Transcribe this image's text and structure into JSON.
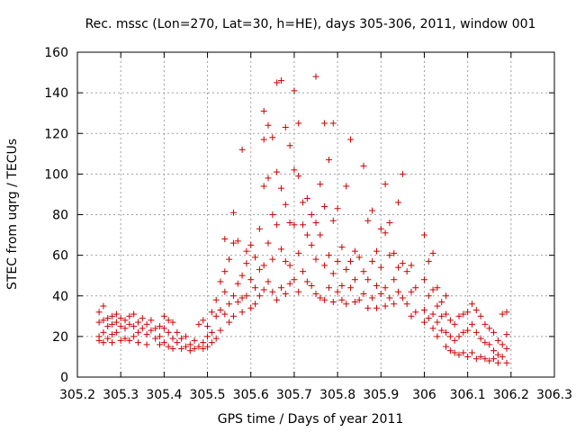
{
  "chart_data": {
    "type": "scatter",
    "title": "Rec. mssc (Lon=270, Lat=30, h=HE), days 305-306, 2011, window 001",
    "xlabel": "GPS time / Days of year 2011",
    "ylabel": "STEC from uqrg / TECUs",
    "xlim": [
      305.2,
      306.3
    ],
    "ylim": [
      0,
      160
    ],
    "xticks": [
      "305.2",
      "305.3",
      "305.4",
      "305.5",
      "305.6",
      "305.7",
      "305.8",
      "305.9",
      "306",
      "306.1",
      "306.2",
      "306.3"
    ],
    "yticks": [
      "0",
      "20",
      "40",
      "60",
      "80",
      "100",
      "120",
      "140",
      "160"
    ],
    "grid": true,
    "marker": "plus",
    "color": "#cc0000",
    "series": [
      {
        "name": "",
        "points": [
          [
            305.25,
            32
          ],
          [
            305.25,
            27
          ],
          [
            305.25,
            20
          ],
          [
            305.25,
            18
          ],
          [
            305.26,
            35
          ],
          [
            305.26,
            28
          ],
          [
            305.26,
            22
          ],
          [
            305.26,
            17
          ],
          [
            305.27,
            29
          ],
          [
            305.27,
            25
          ],
          [
            305.27,
            19
          ],
          [
            305.28,
            30
          ],
          [
            305.28,
            26
          ],
          [
            305.28,
            21
          ],
          [
            305.28,
            17
          ],
          [
            305.29,
            31
          ],
          [
            305.29,
            27
          ],
          [
            305.29,
            22
          ],
          [
            305.3,
            29
          ],
          [
            305.3,
            25
          ],
          [
            305.3,
            18
          ],
          [
            305.31,
            28
          ],
          [
            305.31,
            24
          ],
          [
            305.31,
            19
          ],
          [
            305.32,
            30
          ],
          [
            305.32,
            26
          ],
          [
            305.32,
            18
          ],
          [
            305.33,
            31
          ],
          [
            305.33,
            25
          ],
          [
            305.33,
            20
          ],
          [
            305.34,
            27
          ],
          [
            305.34,
            22
          ],
          [
            305.34,
            17
          ],
          [
            305.35,
            29
          ],
          [
            305.35,
            24
          ],
          [
            305.36,
            26
          ],
          [
            305.36,
            21
          ],
          [
            305.36,
            16
          ],
          [
            305.37,
            28
          ],
          [
            305.37,
            23
          ],
          [
            305.38,
            24
          ],
          [
            305.38,
            19
          ],
          [
            305.39,
            25
          ],
          [
            305.39,
            20
          ],
          [
            305.39,
            16
          ],
          [
            305.4,
            30
          ],
          [
            305.4,
            24
          ],
          [
            305.4,
            17
          ],
          [
            305.41,
            28
          ],
          [
            305.41,
            22
          ],
          [
            305.41,
            15
          ],
          [
            305.42,
            27
          ],
          [
            305.42,
            19
          ],
          [
            305.42,
            14
          ],
          [
            305.43,
            22
          ],
          [
            305.43,
            17
          ],
          [
            305.44,
            19
          ],
          [
            305.44,
            14
          ],
          [
            305.45,
            20
          ],
          [
            305.45,
            15
          ],
          [
            305.46,
            16
          ],
          [
            305.46,
            13
          ],
          [
            305.47,
            18
          ],
          [
            305.47,
            14
          ],
          [
            305.48,
            26
          ],
          [
            305.48,
            15
          ],
          [
            305.49,
            28
          ],
          [
            305.49,
            17
          ],
          [
            305.49,
            14
          ],
          [
            305.5,
            25
          ],
          [
            305.5,
            20
          ],
          [
            305.5,
            15
          ],
          [
            305.51,
            32
          ],
          [
            305.51,
            22
          ],
          [
            305.51,
            17
          ],
          [
            305.52,
            38
          ],
          [
            305.52,
            30
          ],
          [
            305.52,
            19
          ],
          [
            305.53,
            47
          ],
          [
            305.53,
            33
          ],
          [
            305.53,
            23
          ],
          [
            305.54,
            52
          ],
          [
            305.54,
            42
          ],
          [
            305.54,
            31
          ],
          [
            305.54,
            68
          ],
          [
            305.55,
            58
          ],
          [
            305.55,
            36
          ],
          [
            305.55,
            27
          ],
          [
            305.56,
            81
          ],
          [
            305.56,
            66
          ],
          [
            305.56,
            40
          ],
          [
            305.56,
            30
          ],
          [
            305.57,
            67
          ],
          [
            305.57,
            46
          ],
          [
            305.57,
            37
          ],
          [
            305.58,
            112
          ],
          [
            305.58,
            50
          ],
          [
            305.58,
            39
          ],
          [
            305.58,
            32
          ],
          [
            305.59,
            62
          ],
          [
            305.59,
            56
          ],
          [
            305.59,
            40
          ],
          [
            305.6,
            65
          ],
          [
            305.6,
            48
          ],
          [
            305.6,
            34
          ],
          [
            305.61,
            59
          ],
          [
            305.61,
            44
          ],
          [
            305.61,
            36
          ],
          [
            305.62,
            73
          ],
          [
            305.62,
            53
          ],
          [
            305.62,
            40
          ],
          [
            305.63,
            94
          ],
          [
            305.63,
            131
          ],
          [
            305.63,
            117
          ],
          [
            305.63,
            55
          ],
          [
            305.63,
            43
          ],
          [
            305.64,
            124
          ],
          [
            305.64,
            98
          ],
          [
            305.64,
            66
          ],
          [
            305.64,
            47
          ],
          [
            305.65,
            118
          ],
          [
            305.65,
            80
          ],
          [
            305.65,
            58
          ],
          [
            305.65,
            42
          ],
          [
            305.66,
            145
          ],
          [
            305.66,
            101
          ],
          [
            305.66,
            75
          ],
          [
            305.66,
            38
          ],
          [
            305.67,
            146
          ],
          [
            305.67,
            93
          ],
          [
            305.67,
            63
          ],
          [
            305.67,
            44
          ],
          [
            305.68,
            123
          ],
          [
            305.68,
            85
          ],
          [
            305.68,
            57
          ],
          [
            305.68,
            41
          ],
          [
            305.69,
            114
          ],
          [
            305.69,
            76
          ],
          [
            305.69,
            55
          ],
          [
            305.69,
            46
          ],
          [
            305.7,
            141
          ],
          [
            305.7,
            102
          ],
          [
            305.7,
            75
          ],
          [
            305.7,
            48
          ],
          [
            305.71,
            125
          ],
          [
            305.71,
            99
          ],
          [
            305.71,
            61
          ],
          [
            305.71,
            42
          ],
          [
            305.72,
            86
          ],
          [
            305.72,
            75
          ],
          [
            305.72,
            52
          ],
          [
            305.73,
            88
          ],
          [
            305.73,
            70
          ],
          [
            305.73,
            47
          ],
          [
            305.74,
            80
          ],
          [
            305.74,
            65
          ],
          [
            305.74,
            45
          ],
          [
            305.75,
            148
          ],
          [
            305.75,
            76
          ],
          [
            305.75,
            58
          ],
          [
            305.75,
            41
          ],
          [
            305.76,
            95
          ],
          [
            305.76,
            70
          ],
          [
            305.76,
            39
          ],
          [
            305.77,
            125
          ],
          [
            305.77,
            84
          ],
          [
            305.77,
            55
          ],
          [
            305.77,
            38
          ],
          [
            305.78,
            107
          ],
          [
            305.78,
            60
          ],
          [
            305.78,
            44
          ],
          [
            305.79,
            125
          ],
          [
            305.79,
            77
          ],
          [
            305.79,
            51
          ],
          [
            305.79,
            37
          ],
          [
            305.8,
            83
          ],
          [
            305.8,
            57
          ],
          [
            305.8,
            42
          ],
          [
            305.81,
            64
          ],
          [
            305.81,
            45
          ],
          [
            305.81,
            38
          ],
          [
            305.82,
            94
          ],
          [
            305.82,
            53
          ],
          [
            305.82,
            36
          ],
          [
            305.83,
            117
          ],
          [
            305.83,
            57
          ],
          [
            305.83,
            44
          ],
          [
            305.84,
            62
          ],
          [
            305.84,
            48
          ],
          [
            305.84,
            37
          ],
          [
            305.85,
            59
          ],
          [
            305.85,
            38
          ],
          [
            305.86,
            104
          ],
          [
            305.86,
            52
          ],
          [
            305.86,
            41
          ],
          [
            305.87,
            77
          ],
          [
            305.87,
            48
          ],
          [
            305.87,
            34
          ],
          [
            305.88,
            82
          ],
          [
            305.88,
            57
          ],
          [
            305.88,
            39
          ],
          [
            305.89,
            62
          ],
          [
            305.89,
            45
          ],
          [
            305.89,
            34
          ],
          [
            305.9,
            73
          ],
          [
            305.9,
            54
          ],
          [
            305.9,
            41
          ],
          [
            305.91,
            95
          ],
          [
            305.91,
            71
          ],
          [
            305.91,
            44
          ],
          [
            305.91,
            35
          ],
          [
            305.92,
            76
          ],
          [
            305.92,
            60
          ],
          [
            305.92,
            39
          ],
          [
            305.93,
            61
          ],
          [
            305.93,
            48
          ],
          [
            305.93,
            36
          ],
          [
            305.94,
            86
          ],
          [
            305.94,
            54
          ],
          [
            305.94,
            42
          ],
          [
            305.95,
            100
          ],
          [
            305.95,
            56
          ],
          [
            305.95,
            39
          ],
          [
            305.96,
            52
          ],
          [
            305.96,
            36
          ],
          [
            305.97,
            55
          ],
          [
            305.97,
            42
          ],
          [
            305.97,
            30
          ],
          [
            305.98,
            44
          ],
          [
            305.98,
            32
          ],
          [
            306.0,
            70
          ],
          [
            306.0,
            48
          ],
          [
            306.0,
            33
          ],
          [
            306.0,
            27
          ],
          [
            306.01,
            57
          ],
          [
            306.01,
            40
          ],
          [
            306.01,
            29
          ],
          [
            306.02,
            61
          ],
          [
            306.02,
            43
          ],
          [
            306.02,
            31
          ],
          [
            306.02,
            24
          ],
          [
            306.03,
            44
          ],
          [
            306.03,
            35
          ],
          [
            306.03,
            27
          ],
          [
            306.03,
            20
          ],
          [
            306.04,
            37
          ],
          [
            306.04,
            30
          ],
          [
            306.04,
            23
          ],
          [
            306.05,
            40
          ],
          [
            306.05,
            31
          ],
          [
            306.05,
            22
          ],
          [
            306.05,
            15
          ],
          [
            306.06,
            28
          ],
          [
            306.06,
            20
          ],
          [
            306.06,
            13
          ],
          [
            306.07,
            26
          ],
          [
            306.07,
            18
          ],
          [
            306.07,
            12
          ],
          [
            306.08,
            30
          ],
          [
            306.08,
            20
          ],
          [
            306.08,
            11
          ],
          [
            306.09,
            31
          ],
          [
            306.09,
            22
          ],
          [
            306.09,
            12
          ],
          [
            306.1,
            32
          ],
          [
            306.1,
            23
          ],
          [
            306.1,
            10
          ],
          [
            306.11,
            36
          ],
          [
            306.11,
            26
          ],
          [
            306.11,
            12
          ],
          [
            306.12,
            33
          ],
          [
            306.12,
            22
          ],
          [
            306.12,
            9
          ],
          [
            306.13,
            30
          ],
          [
            306.13,
            19
          ],
          [
            306.13,
            10
          ],
          [
            306.14,
            26
          ],
          [
            306.14,
            17
          ],
          [
            306.14,
            9
          ],
          [
            306.15,
            24
          ],
          [
            306.15,
            16
          ],
          [
            306.15,
            8
          ],
          [
            306.16,
            22
          ],
          [
            306.16,
            13
          ],
          [
            306.16,
            9
          ],
          [
            306.17,
            18
          ],
          [
            306.17,
            11
          ],
          [
            306.17,
            7
          ],
          [
            306.18,
            31
          ],
          [
            306.18,
            16
          ],
          [
            306.18,
            10
          ],
          [
            306.19,
            32
          ],
          [
            306.19,
            21
          ],
          [
            306.19,
            14
          ],
          [
            306.19,
            7
          ]
        ]
      }
    ]
  }
}
